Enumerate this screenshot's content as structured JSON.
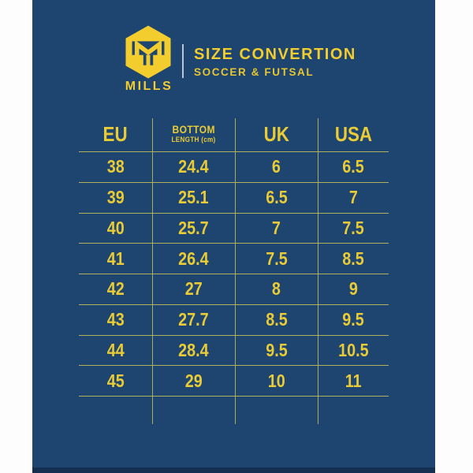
{
  "brand": {
    "name": "MILLS",
    "logo_icon": "mills-hexagon-helmet-logo"
  },
  "header": {
    "title": "SIZE CONVERTION",
    "subtitle": "SOCCER & FUTSAL"
  },
  "table": {
    "header": {
      "eu": "EU",
      "bottom_line1": "BOTTOM",
      "bottom_line2": "LENGTH (cm)",
      "uk": "UK",
      "usa": "USA"
    },
    "rows": [
      [
        "38",
        "24.4",
        "6",
        "6.5"
      ],
      [
        "39",
        "25.1",
        "6.5",
        "7"
      ],
      [
        "40",
        "25.7",
        "7",
        "7.5"
      ],
      [
        "41",
        "26.4",
        "7.5",
        "8.5"
      ],
      [
        "42",
        "27",
        "8",
        "9"
      ],
      [
        "43",
        "27.7",
        "8.5",
        "9.5"
      ],
      [
        "44",
        "28.4",
        "9.5",
        "10.5"
      ],
      [
        "45",
        "29",
        "10",
        "11"
      ]
    ]
  },
  "colors": {
    "panel": "#1e4470",
    "accent_yellow": "#f3cd2d",
    "table_yellow": "#e8cb36",
    "line": "#b2b25c",
    "margin_white": "#fdfdfe",
    "bottom_strip": "#142f52",
    "divider_gray": "#d7dce2"
  },
  "chart_data": {
    "type": "table",
    "title": "SIZE CONVERTION",
    "subtitle": "SOCCER & FUTSAL",
    "brand": "MILLS",
    "columns": [
      "EU",
      "BOTTOM LENGTH (cm)",
      "UK",
      "USA"
    ],
    "rows": [
      [
        38,
        24.4,
        6,
        6.5
      ],
      [
        39,
        25.1,
        6.5,
        7
      ],
      [
        40,
        25.7,
        7,
        7.5
      ],
      [
        41,
        26.4,
        7.5,
        8.5
      ],
      [
        42,
        27,
        8,
        9
      ],
      [
        43,
        27.7,
        8.5,
        9.5
      ],
      [
        44,
        28.4,
        9.5,
        10.5
      ],
      [
        45,
        29,
        10,
        11
      ]
    ],
    "layout_hints": {
      "grid": "on",
      "text_color": "yellow",
      "background": "navy"
    }
  }
}
